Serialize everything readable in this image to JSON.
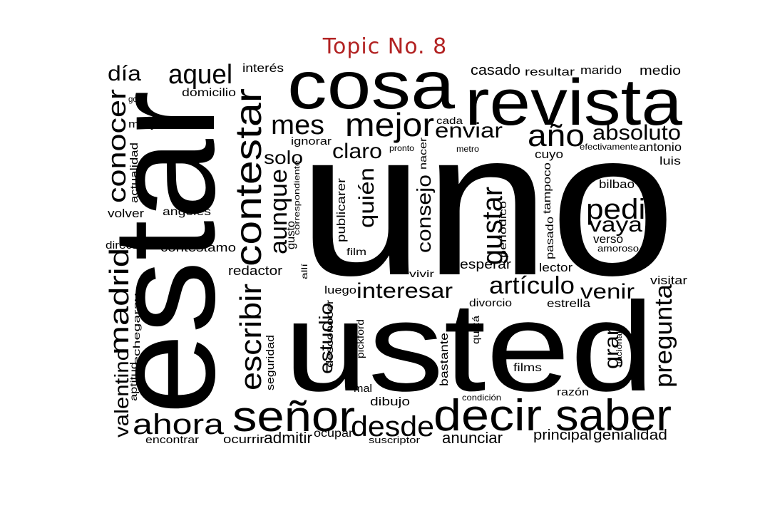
{
  "title": "Topic No. 8",
  "colors": {
    "title": "#b22222",
    "words": "#000000",
    "background": "#ffffff"
  },
  "words": [
    "uno",
    "estar",
    "usted",
    "cosa",
    "revista",
    "decir",
    "saber",
    "señor",
    "contestar",
    "mejor",
    "conocer",
    "año",
    "pedir",
    "madrid",
    "aquel",
    "escribir",
    "absoluto",
    "ahora",
    "desde",
    "mes",
    "enviar",
    "artículo",
    "gustar",
    "día",
    "aunque",
    "pregunta",
    "vaya",
    "interesar",
    "claro",
    "venir",
    "quién",
    "consejo",
    "estudio",
    "valentino",
    "solo",
    "gran",
    "anunciar",
    "admitir",
    "principal",
    "genialidad",
    "casado",
    "resultar",
    "marido",
    "medio",
    "interés",
    "domicilio",
    "goya",
    "mary",
    "seña",
    "cada",
    "ignorar",
    "pronto",
    "nacer",
    "metro",
    "efectivamente",
    "antonio",
    "cuyo",
    "luis",
    "actualidad",
    "bilbao",
    "tampoco",
    "pasado",
    "periódico",
    "verso",
    "amoroso",
    "volver",
    "angeles",
    "publicarer",
    "director",
    "contestamo",
    "gusto",
    "correspondiente",
    "film",
    "redactor",
    "allí",
    "vivir",
    "esperar",
    "lector",
    "visitar",
    "luego",
    "divorcio",
    "estrella",
    "echegaray",
    "seguridad",
    "desconocer",
    "pickford",
    "quizá",
    "bastante",
    "nacional",
    "films",
    "aptitud",
    "mal",
    "dibujo",
    "condición",
    "razón",
    "encontrar",
    "ocurrir",
    "ocupar",
    "suscriptor"
  ]
}
